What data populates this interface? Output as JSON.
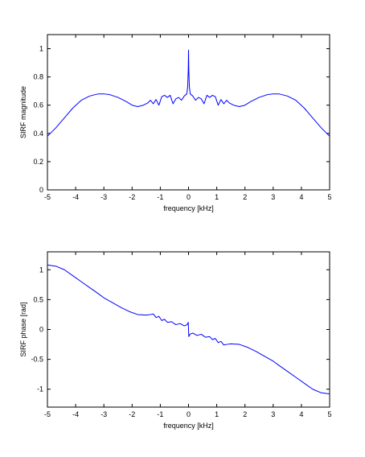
{
  "chart_data": [
    {
      "type": "line",
      "ylabel": "SIRF magnitude",
      "xlabel": "frequency [kHz]",
      "xlim": [
        -5,
        5
      ],
      "ylim": [
        0,
        1.1
      ],
      "xticks": [
        -5,
        -4,
        -3,
        -2,
        -1,
        0,
        1,
        2,
        3,
        4,
        5
      ],
      "yticks": [
        0,
        0.2,
        0.4,
        0.6,
        0.8,
        1
      ],
      "xtick_labels": [
        "-5",
        "-4",
        "-3",
        "-2",
        "-1",
        "0",
        "1",
        "2",
        "3",
        "4",
        "5"
      ],
      "ytick_labels": [
        "0",
        "0.2",
        "0.4",
        "0.6",
        "0.8",
        "1"
      ],
      "grid": false,
      "line_color": "#0000ff",
      "series": [
        {
          "x": [
            -5.0,
            -4.7,
            -4.4,
            -4.1,
            -3.8,
            -3.5,
            -3.2,
            -3.0,
            -2.8,
            -2.5,
            -2.2,
            -2.0,
            -1.8,
            -1.6,
            -1.45,
            -1.35,
            -1.25,
            -1.15,
            -1.05,
            -0.95,
            -0.85,
            -0.75,
            -0.65,
            -0.55,
            -0.45,
            -0.35,
            -0.25,
            -0.15,
            -0.06,
            -0.03,
            -0.01,
            0.0,
            0.01,
            0.03,
            0.06,
            0.15,
            0.25,
            0.35,
            0.45,
            0.55,
            0.65,
            0.75,
            0.85,
            0.95,
            1.05,
            1.15,
            1.25,
            1.35,
            1.45,
            1.6,
            1.8,
            2.0,
            2.2,
            2.5,
            2.8,
            3.0,
            3.2,
            3.5,
            3.8,
            4.1,
            4.4,
            4.7,
            5.0
          ],
          "y": [
            0.38,
            0.44,
            0.51,
            0.58,
            0.635,
            0.665,
            0.68,
            0.68,
            0.675,
            0.655,
            0.625,
            0.6,
            0.59,
            0.6,
            0.615,
            0.635,
            0.61,
            0.64,
            0.6,
            0.66,
            0.67,
            0.655,
            0.67,
            0.61,
            0.645,
            0.655,
            0.635,
            0.665,
            0.68,
            0.73,
            0.85,
            0.99,
            0.85,
            0.73,
            0.68,
            0.665,
            0.635,
            0.655,
            0.645,
            0.61,
            0.67,
            0.655,
            0.67,
            0.66,
            0.6,
            0.64,
            0.61,
            0.635,
            0.615,
            0.6,
            0.59,
            0.6,
            0.625,
            0.655,
            0.675,
            0.68,
            0.68,
            0.665,
            0.635,
            0.58,
            0.51,
            0.44,
            0.38
          ]
        }
      ]
    },
    {
      "type": "line",
      "ylabel": "SIRF phase [rad]",
      "xlabel": "frequency [kHz]",
      "xlim": [
        -5,
        5
      ],
      "ylim": [
        -1.3,
        1.3
      ],
      "xticks": [
        -5,
        -4,
        -3,
        -2,
        -1,
        0,
        1,
        2,
        3,
        4,
        5
      ],
      "yticks": [
        -1,
        -0.5,
        0,
        0.5,
        1
      ],
      "xtick_labels": [
        "-5",
        "-4",
        "-3",
        "-2",
        "-1",
        "0",
        "1",
        "2",
        "3",
        "4",
        "5"
      ],
      "ytick_labels": [
        "-1",
        "-0.5",
        "0",
        "0.5",
        "1"
      ],
      "grid": false,
      "line_color": "#0000ff",
      "series": [
        {
          "x": [
            -5.0,
            -4.7,
            -4.4,
            -4.1,
            -3.8,
            -3.5,
            -3.2,
            -3.0,
            -2.7,
            -2.4,
            -2.1,
            -1.8,
            -1.5,
            -1.35,
            -1.25,
            -1.15,
            -1.05,
            -0.95,
            -0.85,
            -0.75,
            -0.6,
            -0.45,
            -0.3,
            -0.15,
            -0.05,
            -0.01,
            0.0,
            0.01,
            0.05,
            0.15,
            0.3,
            0.45,
            0.6,
            0.75,
            0.85,
            0.95,
            1.05,
            1.15,
            1.25,
            1.35,
            1.5,
            1.8,
            2.1,
            2.4,
            2.7,
            3.0,
            3.2,
            3.5,
            3.8,
            4.1,
            4.4,
            4.7,
            5.0
          ],
          "y": [
            1.08,
            1.06,
            1.0,
            0.9,
            0.8,
            0.7,
            0.6,
            0.53,
            0.45,
            0.37,
            0.3,
            0.25,
            0.24,
            0.25,
            0.26,
            0.2,
            0.22,
            0.15,
            0.17,
            0.12,
            0.13,
            0.08,
            0.1,
            0.06,
            0.08,
            0.12,
            0.0,
            -0.12,
            -0.08,
            -0.06,
            -0.1,
            -0.08,
            -0.13,
            -0.12,
            -0.17,
            -0.15,
            -0.22,
            -0.2,
            -0.26,
            -0.25,
            -0.24,
            -0.25,
            -0.3,
            -0.37,
            -0.45,
            -0.53,
            -0.6,
            -0.7,
            -0.8,
            -0.9,
            -1.0,
            -1.06,
            -1.08
          ]
        }
      ]
    }
  ]
}
